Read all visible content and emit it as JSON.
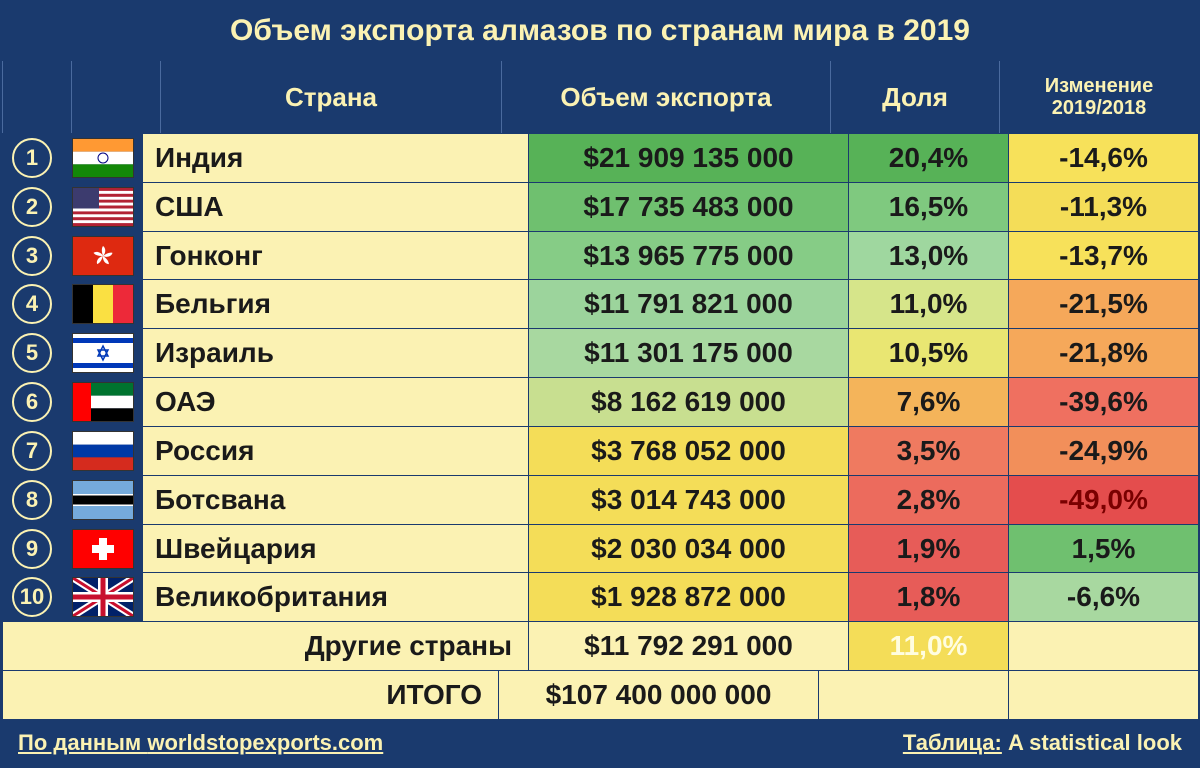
{
  "title": "Объем экспорта алмазов по странам мира в 2019",
  "columns": {
    "country": "Страна",
    "volume": "Объем экспорта",
    "share": "Доля",
    "change": "Изменение 2019/2018"
  },
  "country_cell_bg": "#fbf2b3",
  "rows": [
    {
      "rank": "1",
      "flag": "india",
      "country": "Индия",
      "volume": "$21 909 135 000",
      "share": "20,4%",
      "change": "-14,6%",
      "volume_color": "#57b257",
      "share_color": "#57b257",
      "change_color": "#f7e15a"
    },
    {
      "rank": "2",
      "flag": "usa",
      "country": "США",
      "volume": "$17 735 483 000",
      "share": "16,5%",
      "change": "-11,3%",
      "volume_color": "#6fc06f",
      "share_color": "#7fc97f",
      "change_color": "#f4dd58"
    },
    {
      "rank": "3",
      "flag": "hongkong",
      "country": "Гонконг",
      "volume": "$13 965 775 000",
      "share": "13,0%",
      "change": "-13,7%",
      "volume_color": "#86cc86",
      "share_color": "#9fd79f",
      "change_color": "#f7e15a"
    },
    {
      "rank": "4",
      "flag": "belgium",
      "country": "Бельгия",
      "volume": "$11 791 821 000",
      "share": "11,0%",
      "change": "-21,5%",
      "volume_color": "#9cd49c",
      "share_color": "#d6e58a",
      "change_color": "#f5a85a"
    },
    {
      "rank": "5",
      "flag": "israel",
      "country": "Израиль",
      "volume": "$11 301 175 000",
      "share": "10,5%",
      "change": "-21,8%",
      "volume_color": "#a8d8a0",
      "share_color": "#e9e672",
      "change_color": "#f5a85a"
    },
    {
      "rank": "6",
      "flag": "uae",
      "country": "ОАЭ",
      "volume": "$8 162 619 000",
      "share": "7,6%",
      "change": "-39,6%",
      "volume_color": "#c8df90",
      "share_color": "#f4b45a",
      "change_color": "#ef7060"
    },
    {
      "rank": "7",
      "flag": "russia",
      "country": "Россия",
      "volume": "$3 768 052 000",
      "share": "3,5%",
      "change": "-24,9%",
      "volume_color": "#f4dd58",
      "share_color": "#ef7a60",
      "change_color": "#f28f5a"
    },
    {
      "rank": "8",
      "flag": "botswana",
      "country": "Ботсвана",
      "volume": "$3 014 743 000",
      "share": "2,8%",
      "change": "-49,0%",
      "volume_color": "#f4dd58",
      "share_color": "#ec6b5d",
      "change_color": "#e44d4d",
      "change_text_color": "#7a0000"
    },
    {
      "rank": "9",
      "flag": "switzerland",
      "country": "Швейцария",
      "volume": "$2 030 034 000",
      "share": "1,9%",
      "change": "1,5%",
      "volume_color": "#f4dd58",
      "share_color": "#e75c58",
      "change_color": "#6fc06f"
    },
    {
      "rank": "10",
      "flag": "uk",
      "country": "Великобритания",
      "volume": "$1 928 872 000",
      "share": "1,8%",
      "change": "-6,6%",
      "volume_color": "#f4dd58",
      "share_color": "#e75c58",
      "change_color": "#a8d8a0"
    }
  ],
  "summary_other": {
    "label": "Другие страны",
    "volume": "$11 792 291 000",
    "share": "11,0%",
    "share_bg": "#f4dd58",
    "share_text": "#fffde0"
  },
  "summary_total": {
    "label": "ИТОГО",
    "volume": "$107 400 000 000"
  },
  "footer": {
    "left_prefix": "По данным ",
    "left_link": "worldstopexports.com",
    "right_prefix": "Таблица:",
    "right_text": " A statistical look"
  },
  "flags": {
    "india": "<svg viewBox='0 0 60 38'><rect width='60' height='12.67' fill='#ff9933'/><rect y='12.67' width='60' height='12.67' fill='#fff'/><rect y='25.33' width='60' height='12.67' fill='#138808'/><circle cx='30' cy='19' r='5' fill='none' stroke='#000080' stroke-width='1'/></svg>",
    "usa": "<svg viewBox='0 0 60 38'><rect width='60' height='38' fill='#b22234'/><g fill='#fff'><rect y='2.9' width='60' height='2.9'/><rect y='8.8' width='60' height='2.9'/><rect y='14.6' width='60' height='2.9'/><rect y='20.5' width='60' height='2.9'/><rect y='26.3' width='60' height='2.9'/><rect y='32.2' width='60' height='2.9'/></g><rect width='26' height='20.5' fill='#3c3b6e'/></svg>",
    "hongkong": "<svg viewBox='0 0 60 38'><rect width='60' height='38' fill='#de2910'/><g transform='translate(30 19)' fill='#fff'><path d='M0,-10 C3,-8 3,-3 0,0 C-1,-3 -2,-7 0,-10' transform='rotate(0)'/><path d='M0,-10 C3,-8 3,-3 0,0 C-1,-3 -2,-7 0,-10' transform='rotate(72)'/><path d='M0,-10 C3,-8 3,-3 0,0 C-1,-3 -2,-7 0,-10' transform='rotate(144)'/><path d='M0,-10 C3,-8 3,-3 0,0 C-1,-3 -2,-7 0,-10' transform='rotate(216)'/><path d='M0,-10 C3,-8 3,-3 0,0 C-1,-3 -2,-7 0,-10' transform='rotate(288)'/></g></svg>",
    "belgium": "<svg viewBox='0 0 60 38'><rect width='20' height='38' fill='#000'/><rect x='20' width='20' height='38' fill='#fae042'/><rect x='40' width='20' height='38' fill='#ed2939'/></svg>",
    "israel": "<svg viewBox='0 0 60 38'><rect width='60' height='38' fill='#fff'/><rect y='4' width='60' height='5' fill='#0038b8'/><rect y='29' width='60' height='5' fill='#0038b8'/><path d='M30 12 L35 22 L25 22 Z M30 26 L25 16 L35 16 Z' fill='none' stroke='#0038b8' stroke-width='1.5'/></svg>",
    "uae": "<svg viewBox='0 0 60 38'><rect width='60' height='12.67' fill='#00732f'/><rect y='12.67' width='60' height='12.67' fill='#fff'/><rect y='25.33' width='60' height='12.67' fill='#000'/><rect width='18' height='38' fill='#ff0000'/></svg>",
    "russia": "<svg viewBox='0 0 60 38'><rect width='60' height='12.67' fill='#fff'/><rect y='12.67' width='60' height='12.67' fill='#0039a6'/><rect y='25.33' width='60' height='12.67' fill='#d52b1e'/></svg>",
    "botswana": "<svg viewBox='0 0 60 38'><rect width='60' height='38' fill='#75aadb'/><rect y='14' width='60' height='10' fill='#000'/><rect y='13' width='60' height='1.5' fill='#fff'/><rect y='23.5' width='60' height='1.5' fill='#fff'/></svg>",
    "switzerland": "<svg viewBox='0 0 60 38'><rect width='60' height='38' fill='#ff0000'/><rect x='26' y='8' width='8' height='22' fill='#fff'/><rect x='19' y='15' width='22' height='8' fill='#fff'/></svg>",
    "uk": "<svg viewBox='0 0 60 38'><rect width='60' height='38' fill='#012169'/><path d='M0,0 L60,38 M60,0 L0,38' stroke='#fff' stroke-width='7'/><path d='M0,0 L60,38 M60,0 L0,38' stroke='#c8102e' stroke-width='3'/><path d='M30,0 V38 M0,19 H60' stroke='#fff' stroke-width='10'/><path d='M30,0 V38 M0,19 H60' stroke='#c8102e' stroke-width='5'/></svg>"
  }
}
